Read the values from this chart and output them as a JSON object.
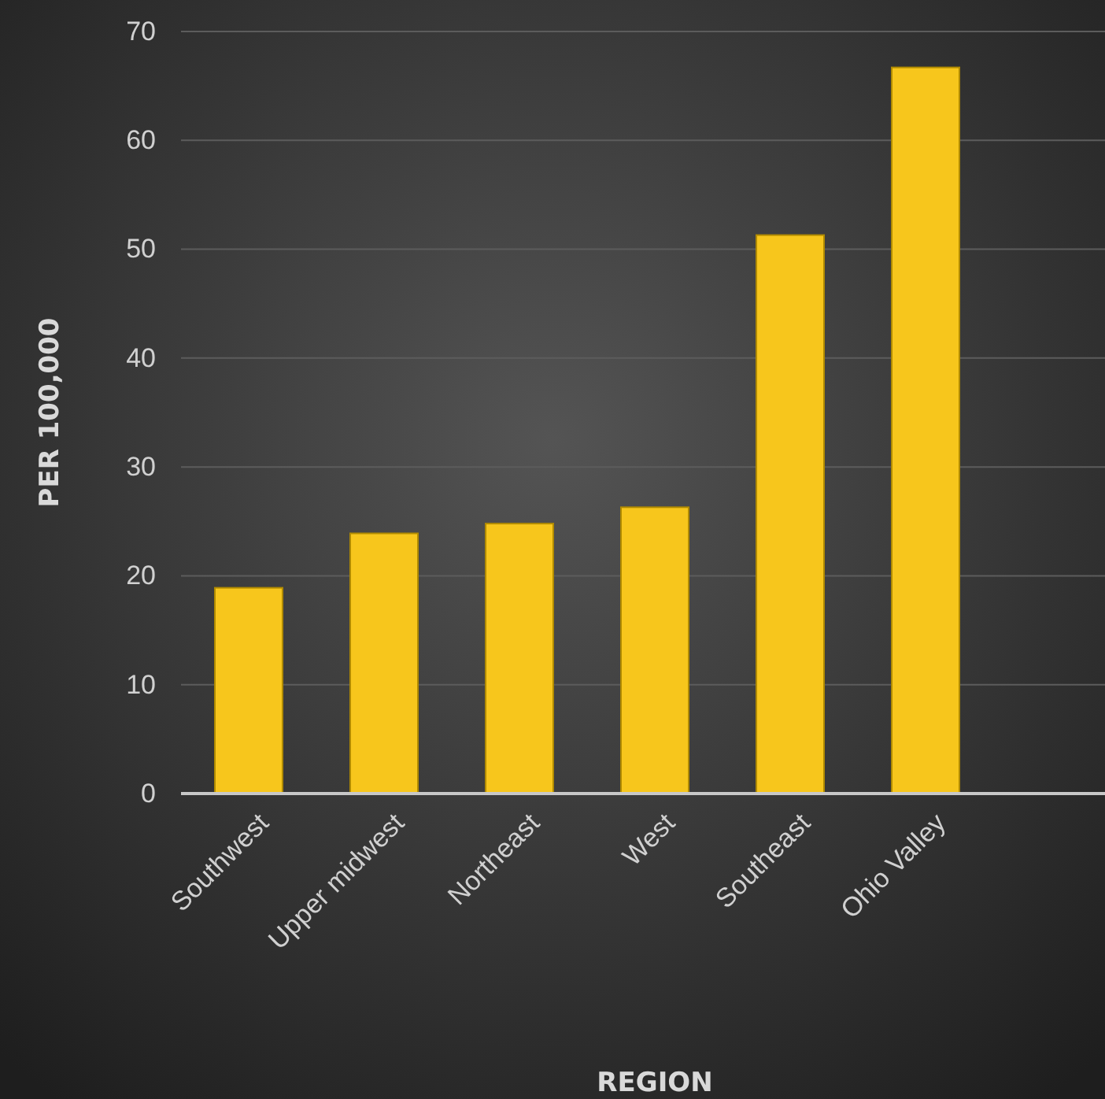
{
  "chart_data": {
    "type": "bar",
    "xlabel": "REGION",
    "ylabel": "PER 100,000",
    "categories": [
      "Southwest",
      "Upper midwest",
      "Northeast",
      "West",
      "Southeast",
      "Ohio Valley"
    ],
    "values": [
      18.9,
      23.9,
      24.8,
      26.3,
      51.3,
      66.7
    ],
    "color": "#f7c61c",
    "ylim": [
      0,
      70
    ],
    "yticks": [
      0,
      10,
      20,
      30,
      40,
      50,
      60,
      70
    ],
    "grid": "y"
  }
}
